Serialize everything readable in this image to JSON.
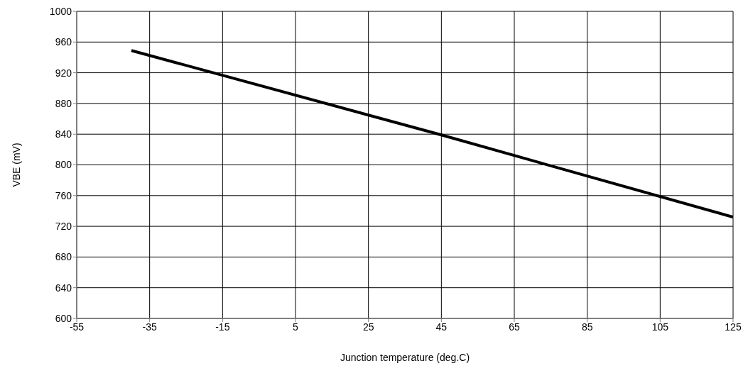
{
  "chart_data": {
    "type": "line",
    "xlabel": "Junction temperature (deg.C)",
    "ylabel": "VBE (mV)",
    "x": [
      -40,
      45,
      125
    ],
    "series": [
      {
        "color": "#000000",
        "values": [
          949,
          839,
          732
        ]
      }
    ],
    "xlim": [
      -55,
      125
    ],
    "xticks": [
      -55,
      -35,
      -15,
      5,
      25,
      45,
      65,
      85,
      105,
      125
    ],
    "ylim": [
      600,
      1000
    ],
    "yticks": [
      600,
      640,
      680,
      720,
      760,
      800,
      840,
      880,
      920,
      960,
      1000
    ],
    "grid": true,
    "marker": "none",
    "line_style": "solid"
  }
}
